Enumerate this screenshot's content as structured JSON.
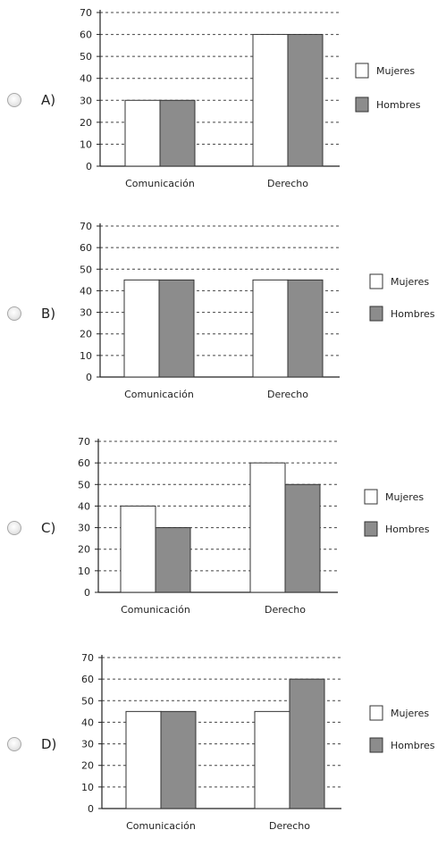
{
  "chart_data": [
    {
      "type": "bar",
      "option": "A)",
      "categories": [
        "Comunicación",
        "Derecho"
      ],
      "series": [
        {
          "name": "Mujeres",
          "values": [
            30,
            60
          ],
          "color": "#ffffff"
        },
        {
          "name": "Hombres",
          "values": [
            30,
            60
          ],
          "color": "#8c8c8c"
        }
      ],
      "ylim": [
        0,
        70
      ],
      "yticks": [
        0,
        10,
        20,
        30,
        40,
        50,
        60,
        70
      ],
      "grid": true,
      "legend": "right"
    },
    {
      "type": "bar",
      "option": "B)",
      "categories": [
        "Comunicación",
        "Derecho"
      ],
      "series": [
        {
          "name": "Mujeres",
          "values": [
            45,
            45
          ],
          "color": "#ffffff"
        },
        {
          "name": "Hombres",
          "values": [
            45,
            45
          ],
          "color": "#8c8c8c"
        }
      ],
      "ylim": [
        0,
        70
      ],
      "yticks": [
        0,
        10,
        20,
        30,
        40,
        50,
        60,
        70
      ],
      "grid": true,
      "legend": "right"
    },
    {
      "type": "bar",
      "option": "C)",
      "categories": [
        "Comunicación",
        "Derecho"
      ],
      "series": [
        {
          "name": "Mujeres",
          "values": [
            40,
            60
          ],
          "color": "#ffffff"
        },
        {
          "name": "Hombres",
          "values": [
            30,
            50
          ],
          "color": "#8c8c8c"
        }
      ],
      "ylim": [
        0,
        70
      ],
      "yticks": [
        0,
        10,
        20,
        30,
        40,
        50,
        60,
        70
      ],
      "grid": true,
      "legend": "right"
    },
    {
      "type": "bar",
      "option": "D)",
      "categories": [
        "Comunicación",
        "Derecho"
      ],
      "series": [
        {
          "name": "Mujeres",
          "values": [
            45,
            45
          ],
          "color": "#ffffff"
        },
        {
          "name": "Hombres",
          "values": [
            45,
            60
          ],
          "color": "#8c8c8c"
        }
      ],
      "ylim": [
        0,
        70
      ],
      "yticks": [
        0,
        10,
        20,
        30,
        40,
        50,
        60,
        70
      ],
      "grid": true,
      "legend": "right"
    }
  ]
}
